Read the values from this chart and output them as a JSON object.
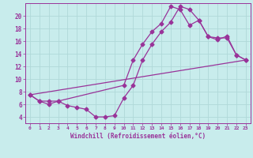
{
  "xlabel": "Windchill (Refroidissement éolien,°C)",
  "background_color": "#c8ecec",
  "grid_color": "#b0d8d8",
  "line_color": "#993399",
  "xlim": [
    -0.5,
    23.5
  ],
  "ylim": [
    3.0,
    22.0
  ],
  "yticks": [
    4,
    6,
    8,
    10,
    12,
    14,
    16,
    18,
    20
  ],
  "xticks": [
    0,
    1,
    2,
    3,
    4,
    5,
    6,
    7,
    8,
    9,
    10,
    11,
    12,
    13,
    14,
    15,
    16,
    17,
    18,
    19,
    20,
    21,
    22,
    23
  ],
  "line1_x": [
    0,
    1,
    2,
    3,
    4,
    5,
    6,
    7,
    8,
    9,
    10,
    11,
    12,
    13,
    14,
    15,
    16,
    17,
    18,
    19,
    20,
    21,
    22,
    23
  ],
  "line1_y": [
    7.5,
    6.5,
    6.5,
    6.5,
    5.8,
    5.5,
    5.2,
    4.0,
    4.0,
    4.2,
    7.0,
    9.0,
    13.0,
    15.5,
    17.5,
    19.0,
    21.5,
    21.0,
    19.3,
    16.7,
    16.2,
    16.8,
    13.8,
    13.0
  ],
  "line2_x": [
    0,
    1,
    2,
    3,
    10,
    11,
    12,
    13,
    14,
    15,
    16,
    17,
    18,
    19,
    20,
    21,
    22,
    23
  ],
  "line2_y": [
    7.5,
    6.5,
    6.0,
    6.5,
    9.0,
    13.0,
    15.5,
    17.5,
    18.8,
    21.5,
    21.0,
    18.5,
    19.3,
    16.7,
    16.5,
    16.5,
    13.8,
    13.0
  ],
  "line3_x": [
    0,
    23
  ],
  "line3_y": [
    7.5,
    13.0
  ]
}
